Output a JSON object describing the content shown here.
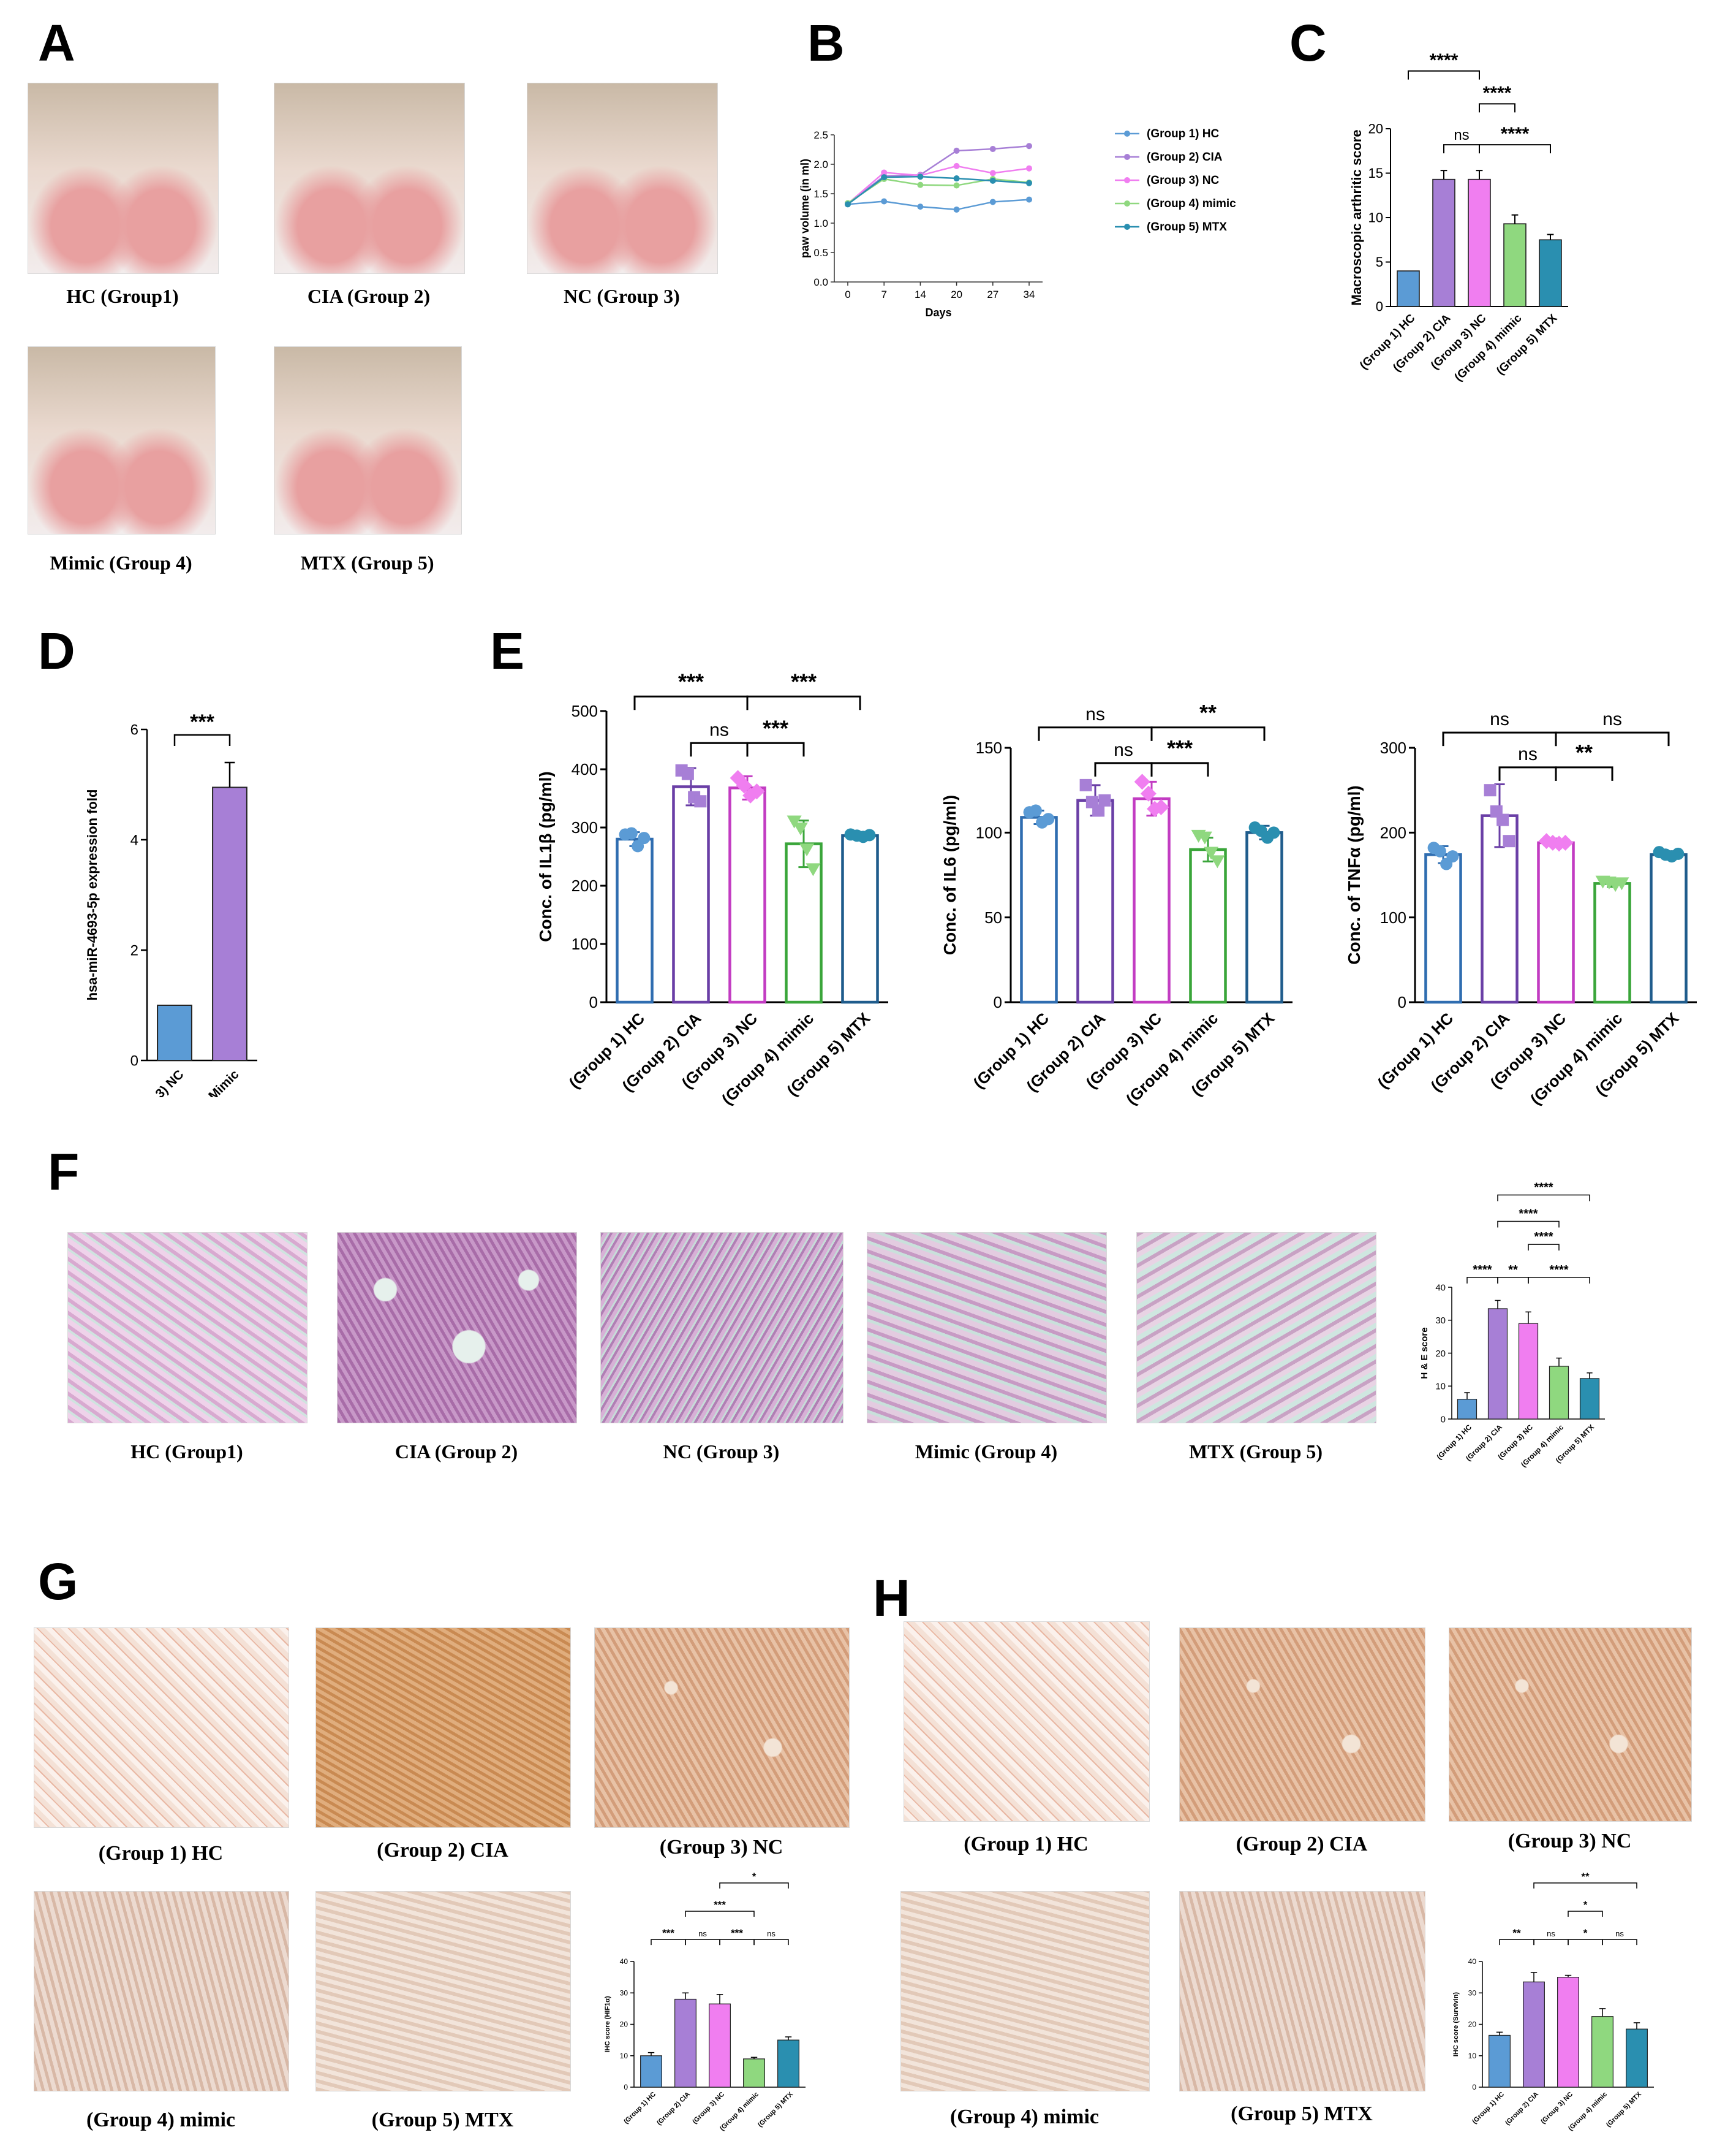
{
  "panels": {
    "A": "A",
    "B": "B",
    "C": "C",
    "D": "D",
    "E": "E",
    "F": "F",
    "G": "G",
    "H": "H"
  },
  "A": {
    "captions": [
      "HC (Group1)",
      "CIA (Group 2)",
      "NC (Group 3)",
      "Mimic (Group 4)",
      "MTX (Group 5)"
    ]
  },
  "F": {
    "captions": [
      "HC (Group1)",
      "CIA (Group 2)",
      "NC (Group 3)",
      "Mimic (Group 4)",
      "MTX (Group 5)"
    ]
  },
  "G": {
    "captions": [
      "(Group 1) HC",
      "(Group 2) CIA",
      "(Group 3) NC",
      "(Group 4) mimic",
      "(Group 5) MTX"
    ]
  },
  "H": {
    "captions": [
      "(Group 1) HC",
      "(Group 2) CIA",
      "(Group 3) NC",
      "(Group 4) mimic",
      "(Group 5) MTX"
    ]
  },
  "colors": {
    "g1": "#5b9bd5",
    "g2": "#a77fd6",
    "g3": "#f07ef0",
    "g4": "#8fd87f",
    "g5": "#2a8fb0",
    "e1": "#2f6db0",
    "e2": "#6a3fa6",
    "e3": "#c23cc2",
    "e4": "#3aa53a",
    "e5": "#1f5c8c"
  },
  "chart_data": [
    {
      "id": "B",
      "type": "line",
      "x": [
        0,
        7,
        14,
        20,
        27,
        34
      ],
      "xlabel": "Days",
      "ylabel": "paw volume (in ml)",
      "ylim": [
        0.0,
        2.5
      ],
      "yticks": [
        "0.0",
        "0.5",
        "1.0",
        "1.5",
        "2.0",
        "2.5"
      ],
      "xticks": [
        "0",
        "7",
        "14",
        "20",
        "27",
        "34"
      ],
      "series": [
        {
          "name": "(Group 1) HC",
          "values": [
            1.32,
            1.37,
            1.28,
            1.23,
            1.36,
            1.4
          ]
        },
        {
          "name": "(Group 2) CIA",
          "values": [
            1.33,
            1.8,
            1.82,
            2.23,
            2.26,
            2.31
          ]
        },
        {
          "name": "(Group 3) NC",
          "values": [
            1.33,
            1.86,
            1.81,
            1.97,
            1.85,
            1.93
          ]
        },
        {
          "name": "(Group 4) mimic",
          "values": [
            1.34,
            1.75,
            1.65,
            1.64,
            1.75,
            1.69
          ]
        },
        {
          "name": "(Group 5) MTX",
          "values": [
            1.32,
            1.78,
            1.79,
            1.76,
            1.72,
            1.68
          ]
        }
      ]
    },
    {
      "id": "C",
      "type": "bar",
      "ylabel": "Macroscopic arthritic score",
      "ylim": [
        0,
        20
      ],
      "yticks": [
        "0",
        "5",
        "10",
        "15",
        "20"
      ],
      "categories": [
        "(Group 1) HC",
        "(Group 2) CIA",
        "(Group 3) NC",
        "(Group 4) mimic",
        "(Group 5) MTX"
      ],
      "values": [
        4.0,
        14.3,
        14.3,
        9.3,
        7.5
      ],
      "errors": [
        0,
        1.0,
        1.0,
        1.0,
        0.6
      ],
      "sig": [
        {
          "from": 0,
          "to": 2,
          "label": "****",
          "level": 26.5
        },
        {
          "from": 2,
          "to": 3,
          "label": "****",
          "level": 22.8
        },
        {
          "from": 1,
          "to": 2,
          "label": "ns",
          "level": 18.2
        },
        {
          "from": 2,
          "to": 4,
          "label": "****",
          "level": 18.2
        }
      ]
    },
    {
      "id": "D",
      "type": "bar",
      "ylabel": "hsa-miR-4693-5p expression fold",
      "ylim": [
        0,
        6
      ],
      "yticks": [
        "0",
        "2",
        "4",
        "6"
      ],
      "categories": [
        "(Group 3) NC",
        "(Group 4) Mimic"
      ],
      "values": [
        1.0,
        4.95
      ],
      "errors": [
        0,
        0.45
      ],
      "sig": [
        {
          "from": 0,
          "to": 1,
          "label": "***",
          "level": 5.9
        }
      ]
    },
    {
      "id": "E1",
      "type": "bar",
      "ylabel": "Conc. of IL1β (pg/ml)",
      "ylim": [
        0,
        500
      ],
      "yticks": [
        "0",
        "100",
        "200",
        "300",
        "400",
        "500"
      ],
      "categories": [
        "(Group 1) HC",
        "(Group 2) CIA",
        "(Group 3) NC",
        "(Group 4) mimic",
        "(Group 5) MTX"
      ],
      "values": [
        280,
        370,
        368,
        272,
        286
      ],
      "errors": [
        12,
        32,
        20,
        40,
        4
      ],
      "points": [
        [
          288,
          290,
          268,
          282
        ],
        [
          398,
          392,
          352,
          345
        ],
        [
          385,
          372,
          355,
          362
        ],
        [
          310,
          298,
          262,
          228
        ],
        [
          288,
          286,
          284,
          287
        ]
      ],
      "sig": [
        {
          "from": 0,
          "to": 2,
          "label": "***",
          "level": 525
        },
        {
          "from": 2,
          "to": 4,
          "label": "***",
          "level": 525
        },
        {
          "from": 1,
          "to": 2,
          "label": "ns",
          "level": 445
        },
        {
          "from": 2,
          "to": 3,
          "label": "***",
          "level": 445
        }
      ]
    },
    {
      "id": "E2",
      "type": "bar",
      "ylabel": "Conc. of IL6 (pg/ml)",
      "ylim": [
        0,
        150
      ],
      "yticks": [
        "0",
        "50",
        "100",
        "150"
      ],
      "categories": [
        "(Group 1) HC",
        "(Group 2) CIA",
        "(Group 3) NC",
        "(Group 4) mimic",
        "(Group 5) MTX"
      ],
      "values": [
        109,
        119,
        120,
        90,
        100
      ],
      "errors": [
        4,
        9,
        10,
        7,
        4
      ],
      "points": [
        [
          112,
          113,
          106,
          108
        ],
        [
          128,
          118,
          113,
          119
        ],
        [
          130,
          123,
          114,
          115
        ],
        [
          98,
          97,
          88,
          83
        ],
        [
          103,
          101,
          97,
          100
        ]
      ],
      "sig": [
        {
          "from": 0,
          "to": 2,
          "label": "ns",
          "level": 162
        },
        {
          "from": 2,
          "to": 4,
          "label": "**",
          "level": 162
        },
        {
          "from": 1,
          "to": 2,
          "label": "ns",
          "level": 141
        },
        {
          "from": 2,
          "to": 3,
          "label": "***",
          "level": 141
        }
      ]
    },
    {
      "id": "E3",
      "type": "bar",
      "ylabel": "Conc. of TNFα (pg/ml)",
      "ylim": [
        0,
        300
      ],
      "yticks": [
        "0",
        "100",
        "200",
        "300"
      ],
      "categories": [
        "(Group 1) HC",
        "(Group 2) CIA",
        "(Group 3) NC",
        "(Group 4) mimic",
        "(Group 5) MTX"
      ],
      "values": [
        174,
        220,
        188,
        140,
        174
      ],
      "errors": [
        10,
        37,
        5,
        4,
        4
      ],
      "points": [
        [
          182,
          178,
          163,
          172
        ],
        [
          250,
          225,
          215,
          190
        ],
        [
          190,
          188,
          187,
          188
        ],
        [
          142,
          141,
          138,
          140
        ],
        [
          177,
          174,
          172,
          175
        ]
      ],
      "sig": [
        {
          "from": 0,
          "to": 2,
          "label": "ns",
          "level": 318
        },
        {
          "from": 2,
          "to": 4,
          "label": "ns",
          "level": 318
        },
        {
          "from": 1,
          "to": 2,
          "label": "ns",
          "level": 277
        },
        {
          "from": 2,
          "to": 3,
          "label": "**",
          "level": 277
        }
      ]
    },
    {
      "id": "F",
      "type": "bar",
      "ylabel": "H & E score",
      "ylim": [
        0,
        40
      ],
      "yticks": [
        "0",
        "10",
        "20",
        "30",
        "40"
      ],
      "categories": [
        "(Group 1) HC",
        "(Group 2) CIA",
        "(Group 3) NC",
        "(Group 4) mimic",
        "(Group 5) MTX"
      ],
      "values": [
        6,
        33.5,
        29,
        16,
        12.3
      ],
      "errors": [
        2,
        2.5,
        3.5,
        2.5,
        1.7
      ],
      "sig": [
        {
          "from": 1,
          "to": 4,
          "label": "****",
          "level": 68
        },
        {
          "from": 1,
          "to": 3,
          "label": "****",
          "level": 60
        },
        {
          "from": 2,
          "to": 3,
          "label": "****",
          "level": 53
        },
        {
          "from": 0,
          "to": 1,
          "label": "****",
          "level": 43
        },
        {
          "from": 1,
          "to": 2,
          "label": "**",
          "level": 43
        },
        {
          "from": 2,
          "to": 4,
          "label": "****",
          "level": 43
        }
      ]
    },
    {
      "id": "G",
      "type": "bar",
      "ylabel": "IHC score (HIF1α)",
      "ylim": [
        0,
        40
      ],
      "yticks": [
        "0",
        "10",
        "20",
        "30",
        "40"
      ],
      "categories": [
        "(Group 1) HC",
        "(Group 2) CIA",
        "(Group 3) NC",
        "(Group 4) mimic",
        "(Group 5) MTX"
      ],
      "values": [
        10,
        28,
        26.5,
        9,
        15
      ],
      "errors": [
        1,
        2,
        3,
        0.5,
        1
      ],
      "sig": [
        {
          "from": 1,
          "to": 4,
          "label": "**",
          "level": 74
        },
        {
          "from": 2,
          "to": 4,
          "label": "*",
          "level": 65
        },
        {
          "from": 1,
          "to": 3,
          "label": "***",
          "level": 56
        },
        {
          "from": 0,
          "to": 1,
          "label": "***",
          "level": 47
        },
        {
          "from": 1,
          "to": 2,
          "label": "ns",
          "level": 47
        },
        {
          "from": 2,
          "to": 3,
          "label": "***",
          "level": 47
        },
        {
          "from": 3,
          "to": 4,
          "label": "ns",
          "level": 47
        }
      ]
    },
    {
      "id": "H",
      "type": "bar",
      "ylabel": "IHC score (Survivin)",
      "ylim": [
        0,
        40
      ],
      "yticks": [
        "0",
        "10",
        "20",
        "30",
        "40"
      ],
      "categories": [
        "(Group 1) HC",
        "(Group 2) CIA",
        "(Group 3) NC",
        "(Group 4) mimic",
        "(Group 5) MTX"
      ],
      "values": [
        16.5,
        33.5,
        35,
        22.5,
        18.5
      ],
      "errors": [
        1,
        3,
        0.6,
        2.5,
        2
      ],
      "sig": [
        {
          "from": 2,
          "to": 4,
          "label": "**",
          "level": 74
        },
        {
          "from": 1,
          "to": 4,
          "label": "**",
          "level": 65
        },
        {
          "from": 2,
          "to": 3,
          "label": "*",
          "level": 56
        },
        {
          "from": 0,
          "to": 1,
          "label": "**",
          "level": 47
        },
        {
          "from": 1,
          "to": 2,
          "label": "ns",
          "level": 47
        },
        {
          "from": 2,
          "to": 3,
          "label": "*",
          "level": 47
        },
        {
          "from": 3,
          "to": 4,
          "label": "ns",
          "level": 47
        }
      ]
    }
  ]
}
